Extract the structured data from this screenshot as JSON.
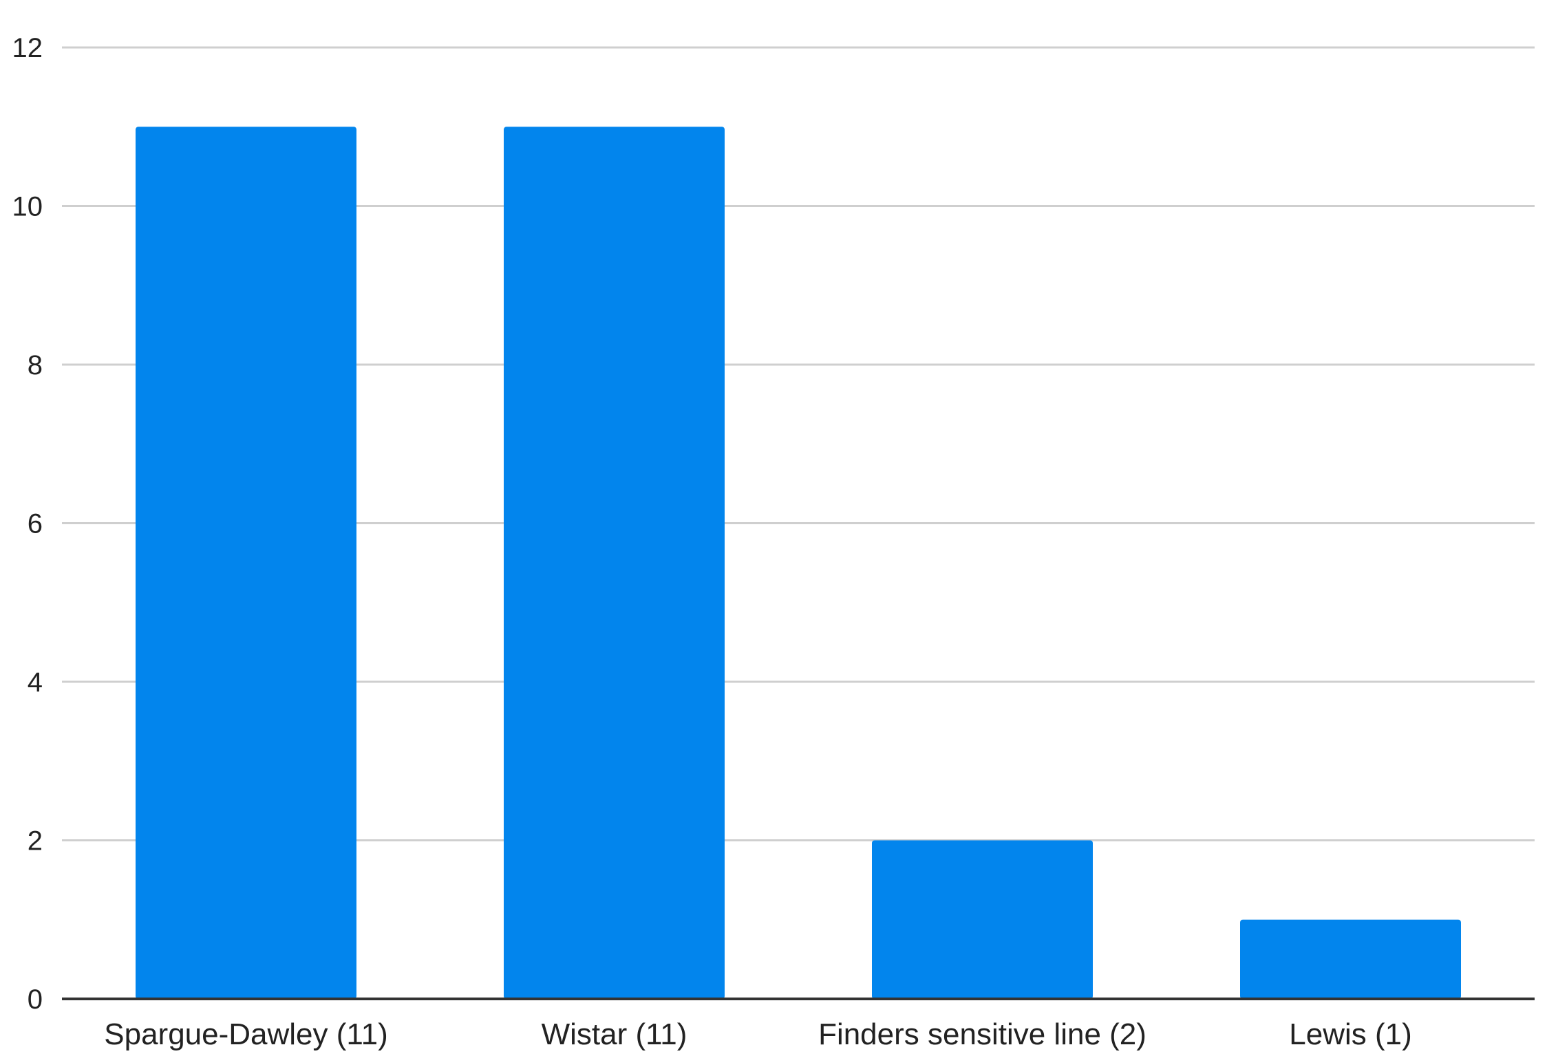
{
  "chart_data": {
    "type": "bar",
    "title": "",
    "xlabel": "",
    "ylabel": "",
    "categories": [
      "Spargue-Dawley (11)",
      "Wistar (11)",
      "Finders sensitive line (2)",
      "Lewis (1)"
    ],
    "values": [
      11,
      11,
      2,
      1
    ],
    "ylim": [
      0,
      12
    ],
    "yticks": [
      0,
      2,
      4,
      6,
      8,
      10,
      12
    ],
    "grid": true,
    "legend": "none",
    "bar_color": "#0285ED",
    "grid_color": "#CFCFCF",
    "axis_color": "#333333"
  }
}
